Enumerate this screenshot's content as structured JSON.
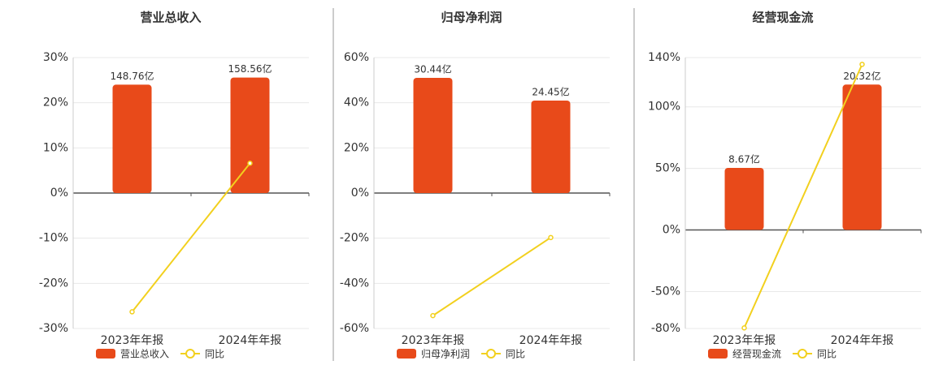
{
  "chart_data": [
    {
      "type": "combo",
      "title": "营业总收入",
      "categories": [
        "2023年年报",
        "2024年年报"
      ],
      "ylim": [
        -30,
        30
      ],
      "yticks": [
        {
          "value": -30,
          "label": "-30%"
        },
        {
          "value": -20,
          "label": "-20%"
        },
        {
          "value": -10,
          "label": "-10%"
        },
        {
          "value": 0,
          "label": "0%"
        },
        {
          "value": 10,
          "label": "10%"
        },
        {
          "value": 20,
          "label": "20%"
        },
        {
          "value": 30,
          "label": "30%"
        }
      ],
      "y2lim": [
        -186,
        186
      ],
      "grid": true,
      "series": [
        {
          "name": "营业总收入",
          "kind": "bar",
          "axis": "y2",
          "color": "#e84a1a",
          "values": [
            148.76,
            158.56
          ],
          "value_labels": [
            "148.76亿",
            "158.56亿"
          ]
        },
        {
          "name": "同比",
          "kind": "line",
          "color": "#f2d01e",
          "values": [
            -26.3,
            6.6
          ]
        }
      ]
    },
    {
      "type": "combo",
      "title": "归母净利润",
      "categories": [
        "2023年年报",
        "2024年年报"
      ],
      "ylim": [
        -60,
        60
      ],
      "yticks": [
        {
          "value": -60,
          "label": "-60%"
        },
        {
          "value": -40,
          "label": "-40%"
        },
        {
          "value": -20,
          "label": "-20%"
        },
        {
          "value": 0,
          "label": "0%"
        },
        {
          "value": 20,
          "label": "20%"
        },
        {
          "value": 40,
          "label": "40%"
        },
        {
          "value": 60,
          "label": "60%"
        }
      ],
      "y2lim": [
        -35.8,
        35.8
      ],
      "grid": true,
      "series": [
        {
          "name": "归母净利润",
          "kind": "bar",
          "axis": "y2",
          "color": "#e84a1a",
          "values": [
            30.44,
            24.45
          ],
          "value_labels": [
            "30.44亿",
            "24.45亿"
          ]
        },
        {
          "name": "同比",
          "kind": "line",
          "color": "#f2d01e",
          "values": [
            -54.3,
            -19.7
          ]
        }
      ]
    },
    {
      "type": "combo",
      "title": "经营现金流",
      "categories": [
        "2023年年报",
        "2024年年报"
      ],
      "ylim": [
        -80,
        140
      ],
      "yticks": [
        {
          "value": -80,
          "label": "-80%"
        },
        {
          "value": -50,
          "label": "-50%"
        },
        {
          "value": 0,
          "label": "0%"
        },
        {
          "value": 50,
          "label": "50%"
        },
        {
          "value": 100,
          "label": "100%"
        },
        {
          "value": 140,
          "label": "140%"
        }
      ],
      "y2lim": [
        -13.8,
        24.1
      ],
      "grid": true,
      "series": [
        {
          "name": "经营现金流",
          "kind": "bar",
          "axis": "y2",
          "color": "#e84a1a",
          "values": [
            8.67,
            20.32
          ],
          "value_labels": [
            "8.67亿",
            "20.32亿"
          ]
        },
        {
          "name": "同比",
          "kind": "line",
          "color": "#f2d01e",
          "values": [
            -79.5,
            134.5
          ]
        }
      ]
    }
  ]
}
